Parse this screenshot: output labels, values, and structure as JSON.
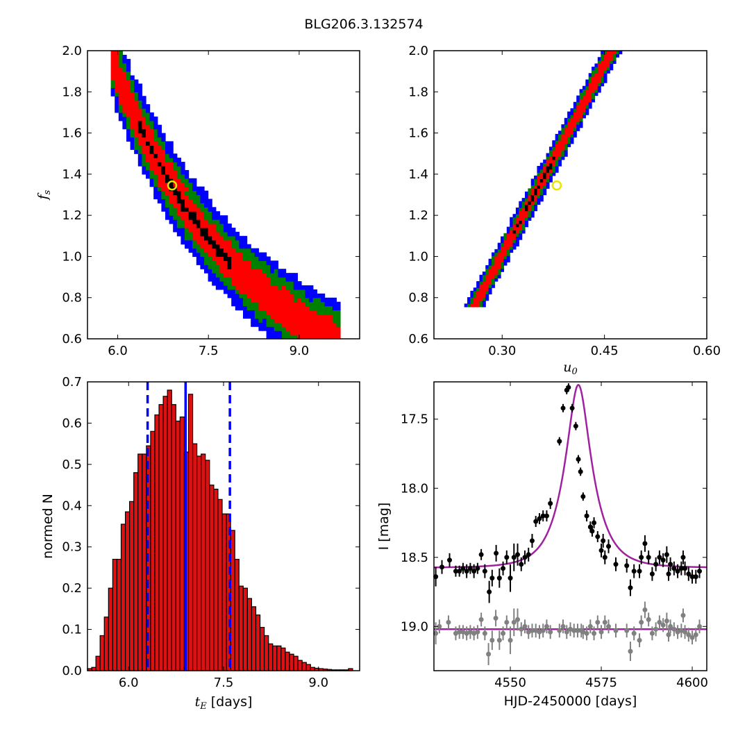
{
  "figure_title": "BLG206.3.132574",
  "colors": {
    "blue": "#0000ff",
    "green": "#008000",
    "red": "#ff0000",
    "black": "#000000",
    "yellow": "#e6e600",
    "magenta": "#a020a0",
    "gray": "#808080",
    "bar_fill": "#dd1111"
  },
  "chart_data": [
    {
      "type": "heatmap",
      "panel": "top-left",
      "title": "",
      "xlabel": "",
      "ylabel_main": "f",
      "ylabel_sub": "s",
      "xlim": [
        5.5,
        10.0
      ],
      "ylim": [
        0.6,
        2.0
      ],
      "xticks": [
        "6.0",
        "7.5",
        "9.0"
      ],
      "xtick_values": [
        6.0,
        7.5,
        9.0
      ],
      "yticks": [
        "0.6",
        "0.8",
        "1.0",
        "1.2",
        "1.4",
        "1.6",
        "1.8",
        "2.0"
      ],
      "ytick_values": [
        0.6,
        0.8,
        1.0,
        1.2,
        1.4,
        1.6,
        1.8,
        2.0
      ],
      "relation": "f_s = 1.34 * (x / 6.9)^(-2.45)",
      "band_relation": [
        1.34,
        6.9,
        -2.45
      ],
      "contour_levels": [
        "blue (outer)",
        "green",
        "red",
        "black (best)"
      ],
      "band_halfwidths": [
        0.19,
        0.14,
        0.09,
        0.022
      ],
      "x_extent": [
        5.9,
        9.7
      ],
      "best_fit": {
        "x": 6.9,
        "y": 1.345
      }
    },
    {
      "type": "heatmap",
      "panel": "top-right",
      "title": "",
      "xlabel_main": "u",
      "xlabel_sub": "0",
      "ylabel": "",
      "xlim": [
        0.2,
        0.6
      ],
      "ylim": [
        0.6,
        2.0
      ],
      "xticks": [
        "0.30",
        "0.45",
        "0.60"
      ],
      "xtick_values": [
        0.3,
        0.45,
        0.6
      ],
      "yticks": [
        "0.6",
        "0.8",
        "1.0",
        "1.2",
        "1.4",
        "1.6",
        "1.8",
        "2.0"
      ],
      "ytick_values": [
        0.6,
        0.8,
        1.0,
        1.2,
        1.4,
        1.6,
        1.8,
        2.0
      ],
      "relation": "u0 = 0.2575 + 0.1625 * (f_s - 0.75)",
      "band_relation": [
        0.2575,
        0.1625,
        0.75
      ],
      "contour_levels": [
        "blue (outer)",
        "green",
        "red",
        "black (best)"
      ],
      "band_halfwidths": [
        0.014,
        0.01,
        0.0065,
        0.0018
      ],
      "y_extent": [
        0.75,
        2.0
      ],
      "best_fit": {
        "x": 0.38,
        "y": 1.345
      }
    },
    {
      "type": "bar",
      "panel": "bottom-left",
      "title": "",
      "xlabel_main": "t",
      "xlabel_sub": "E",
      "xlabel_suffix": " [days]",
      "ylabel": "normed N",
      "xlim": [
        5.35,
        9.65
      ],
      "ylim": [
        0.0,
        0.7
      ],
      "xticks": [
        "6.0",
        "7.5",
        "9.0"
      ],
      "xtick_values": [
        6.0,
        7.5,
        9.0
      ],
      "yticks": [
        "0.0",
        "0.1",
        "0.2",
        "0.3",
        "0.4",
        "0.5",
        "0.6",
        "0.7"
      ],
      "ytick_values": [
        0.0,
        0.1,
        0.2,
        0.3,
        0.4,
        0.5,
        0.6,
        0.7
      ],
      "bin_start": 5.35,
      "bin_width": 0.0665,
      "values": [
        0.005,
        0.008,
        0.035,
        0.085,
        0.13,
        0.2,
        0.27,
        0.27,
        0.355,
        0.385,
        0.41,
        0.48,
        0.525,
        0.525,
        0.545,
        0.58,
        0.62,
        0.645,
        0.665,
        0.68,
        0.645,
        0.605,
        0.615,
        0.53,
        0.67,
        0.55,
        0.52,
        0.525,
        0.51,
        0.45,
        0.44,
        0.415,
        0.38,
        0.38,
        0.34,
        0.27,
        0.205,
        0.2,
        0.175,
        0.155,
        0.135,
        0.105,
        0.085,
        0.065,
        0.06,
        0.06,
        0.055,
        0.045,
        0.04,
        0.035,
        0.025,
        0.02,
        0.015,
        0.008,
        0.006,
        0.005,
        0.004,
        0.003,
        0.002,
        0.002,
        0.002,
        0.002,
        0.005
      ],
      "median_line": 6.9,
      "interval_lines": [
        6.3,
        7.6
      ]
    },
    {
      "type": "scatter",
      "panel": "bottom-right",
      "title": "",
      "xlabel": "HJD-2450000 [days]",
      "ylabel": "I [mag]",
      "xlim": [
        4529,
        4604
      ],
      "ylim": [
        19.32,
        17.23
      ],
      "inverted_y": true,
      "xticks": [
        "4550",
        "4575",
        "4600"
      ],
      "xtick_values": [
        4550,
        4575,
        4600
      ],
      "yticks": [
        "17.5",
        "18.0",
        "18.5",
        "19.0"
      ],
      "ytick_values": [
        17.5,
        18.0,
        18.5,
        19.0
      ],
      "model": {
        "baseline": 18.575,
        "t0": 4568.7,
        "u0": 0.38,
        "tE": 6.9,
        "fs": 1.345
      },
      "residual_baseline": 19.02,
      "series": [
        {
          "name": "",
          "color": "black",
          "points": [
            [
              4529.5,
              18.64,
              0.07
            ],
            [
              4531.2,
              18.57,
              0.05
            ],
            [
              4533.3,
              18.52,
              0.05
            ],
            [
              4535.0,
              18.6,
              0.04
            ],
            [
              4536.0,
              18.6,
              0.04
            ],
            [
              4537.0,
              18.58,
              0.04
            ],
            [
              4538.0,
              18.6,
              0.05
            ],
            [
              4539.0,
              18.58,
              0.04
            ],
            [
              4540.0,
              18.6,
              0.05
            ],
            [
              4541.0,
              18.58,
              0.04
            ],
            [
              4542.0,
              18.48,
              0.04
            ],
            [
              4543.0,
              18.6,
              0.05
            ],
            [
              4544.2,
              18.75,
              0.08
            ],
            [
              4545.0,
              18.65,
              0.06
            ],
            [
              4546.1,
              18.47,
              0.06
            ],
            [
              4547.0,
              18.65,
              0.07
            ],
            [
              4548.0,
              18.58,
              0.05
            ],
            [
              4549.0,
              18.5,
              0.05
            ],
            [
              4550.0,
              18.65,
              0.1
            ],
            [
              4551.0,
              18.5,
              0.1
            ],
            [
              4552.0,
              18.48,
              0.08
            ],
            [
              4553.0,
              18.55,
              0.05
            ],
            [
              4554.0,
              18.5,
              0.05
            ],
            [
              4555.0,
              18.48,
              0.05
            ],
            [
              4556.0,
              18.38,
              0.05
            ],
            [
              4557.0,
              18.24,
              0.04
            ],
            [
              4558.0,
              18.22,
              0.04
            ],
            [
              4559.0,
              18.2,
              0.04
            ],
            [
              4560.0,
              18.2,
              0.04
            ],
            [
              4561.0,
              18.11,
              0.04
            ],
            [
              4563.5,
              17.66,
              0.03
            ],
            [
              4564.5,
              17.42,
              0.03
            ],
            [
              4565.5,
              17.29,
              0.03
            ],
            [
              4566.0,
              17.27,
              0.03
            ],
            [
              4567.0,
              17.42,
              0.03
            ],
            [
              4568.0,
              17.55,
              0.03
            ],
            [
              4568.7,
              17.79,
              0.03
            ],
            [
              4569.3,
              17.88,
              0.03
            ],
            [
              4570.0,
              18.06,
              0.03
            ],
            [
              4571.0,
              18.2,
              0.04
            ],
            [
              4572.0,
              18.28,
              0.04
            ],
            [
              4572.5,
              18.31,
              0.04
            ],
            [
              4573.0,
              18.25,
              0.04
            ],
            [
              4574.0,
              18.35,
              0.04
            ],
            [
              4575.0,
              18.45,
              0.05
            ],
            [
              4575.5,
              18.38,
              0.05
            ],
            [
              4576.0,
              18.5,
              0.05
            ],
            [
              4577.0,
              18.42,
              0.05
            ],
            [
              4579.0,
              18.55,
              0.05
            ],
            [
              4582.0,
              18.56,
              0.05
            ],
            [
              4583.0,
              18.72,
              0.06
            ],
            [
              4584.0,
              18.6,
              0.05
            ],
            [
              4585.5,
              18.6,
              0.05
            ],
            [
              4586.0,
              18.5,
              0.05
            ],
            [
              4587.0,
              18.4,
              0.06
            ],
            [
              4588.0,
              18.5,
              0.05
            ],
            [
              4589.0,
              18.62,
              0.05
            ],
            [
              4590.0,
              18.55,
              0.05
            ],
            [
              4591.0,
              18.5,
              0.05
            ],
            [
              4592.0,
              18.52,
              0.05
            ],
            [
              4593.0,
              18.48,
              0.06
            ],
            [
              4593.5,
              18.62,
              0.05
            ],
            [
              4594.0,
              18.55,
              0.05
            ],
            [
              4595.0,
              18.58,
              0.05
            ],
            [
              4596.0,
              18.6,
              0.05
            ],
            [
              4597.0,
              18.58,
              0.05
            ],
            [
              4597.5,
              18.5,
              0.05
            ],
            [
              4598.0,
              18.58,
              0.05
            ],
            [
              4599.0,
              18.62,
              0.05
            ],
            [
              4600.0,
              18.64,
              0.05
            ],
            [
              4601.0,
              18.64,
              0.05
            ],
            [
              4602.0,
              18.6,
              0.05
            ]
          ]
        },
        {
          "name": "",
          "color": "gray",
          "points": [
            [
              4529.5,
              19.05,
              0.08
            ],
            [
              4530.5,
              19.0,
              0.05
            ],
            [
              4533.0,
              18.97,
              0.05
            ],
            [
              4535.0,
              19.05,
              0.05
            ],
            [
              4536.0,
              19.04,
              0.05
            ],
            [
              4537.0,
              19.04,
              0.05
            ],
            [
              4538.0,
              19.05,
              0.05
            ],
            [
              4539.0,
              19.04,
              0.05
            ],
            [
              4540.0,
              19.05,
              0.05
            ],
            [
              4541.0,
              19.04,
              0.05
            ],
            [
              4542.0,
              18.95,
              0.05
            ],
            [
              4543.0,
              19.05,
              0.05
            ],
            [
              4544.0,
              19.2,
              0.08
            ],
            [
              4545.0,
              19.1,
              0.07
            ],
            [
              4546.0,
              18.94,
              0.06
            ],
            [
              4547.0,
              19.1,
              0.07
            ],
            [
              4548.0,
              19.05,
              0.05
            ],
            [
              4549.0,
              18.97,
              0.05
            ],
            [
              4550.0,
              19.1,
              0.1
            ],
            [
              4551.0,
              18.97,
              0.1
            ],
            [
              4552.0,
              18.95,
              0.08
            ],
            [
              4553.0,
              19.02,
              0.05
            ],
            [
              4554.0,
              19.0,
              0.05
            ],
            [
              4555.0,
              19.04,
              0.05
            ],
            [
              4556.0,
              19.03,
              0.05
            ],
            [
              4557.0,
              19.03,
              0.05
            ],
            [
              4558.0,
              19.04,
              0.05
            ],
            [
              4559.0,
              19.03,
              0.05
            ],
            [
              4560.0,
              19.0,
              0.05
            ],
            [
              4561.0,
              19.04,
              0.05
            ],
            [
              4563.5,
              19.03,
              0.05
            ],
            [
              4564.5,
              19.0,
              0.05
            ],
            [
              4565.5,
              19.04,
              0.05
            ],
            [
              4566.5,
              19.02,
              0.05
            ],
            [
              4567.5,
              19.03,
              0.05
            ],
            [
              4568.5,
              19.03,
              0.05
            ],
            [
              4569.5,
              19.03,
              0.05
            ],
            [
              4570.0,
              19.04,
              0.05
            ],
            [
              4571.0,
              19.05,
              0.05
            ],
            [
              4572.0,
              19.0,
              0.05
            ],
            [
              4573.0,
              19.05,
              0.05
            ],
            [
              4574.0,
              18.97,
              0.05
            ],
            [
              4575.0,
              19.04,
              0.05
            ],
            [
              4576.0,
              18.97,
              0.05
            ],
            [
              4577.0,
              19.0,
              0.05
            ],
            [
              4579.0,
              19.03,
              0.05
            ],
            [
              4582.0,
              19.03,
              0.05
            ],
            [
              4583.0,
              19.18,
              0.07
            ],
            [
              4584.0,
              19.05,
              0.05
            ],
            [
              4585.5,
              19.1,
              0.05
            ],
            [
              4586.0,
              18.97,
              0.05
            ],
            [
              4587.0,
              18.88,
              0.06
            ],
            [
              4588.0,
              18.95,
              0.05
            ],
            [
              4589.0,
              19.05,
              0.05
            ],
            [
              4590.0,
              19.02,
              0.05
            ],
            [
              4591.0,
              18.97,
              0.05
            ],
            [
              4592.0,
              18.99,
              0.05
            ],
            [
              4593.0,
              18.96,
              0.06
            ],
            [
              4593.5,
              19.06,
              0.05
            ],
            [
              4594.0,
              19.0,
              0.05
            ],
            [
              4595.0,
              19.02,
              0.05
            ],
            [
              4596.0,
              19.04,
              0.05
            ],
            [
              4597.0,
              19.03,
              0.05
            ],
            [
              4597.5,
              18.92,
              0.05
            ],
            [
              4598.0,
              19.04,
              0.05
            ],
            [
              4599.0,
              19.06,
              0.05
            ],
            [
              4600.0,
              19.08,
              0.05
            ],
            [
              4601.0,
              19.06,
              0.05
            ],
            [
              4602.0,
              19.0,
              0.05
            ]
          ]
        }
      ]
    }
  ]
}
